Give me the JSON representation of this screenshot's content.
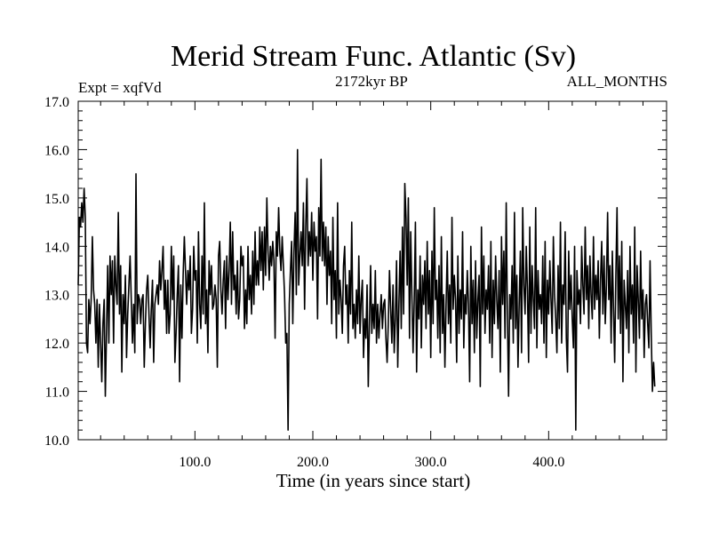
{
  "chart_data": {
    "type": "line",
    "title": "Merid Stream Func. Atlantic (Sv)",
    "subtitle_left": "Expt = xqfVd",
    "subtitle_center": "2172kyr BP",
    "subtitle_right": "ALL_MONTHS",
    "xlabel": "Time (in years since start)",
    "ylabel": "",
    "xlim": [
      1,
      500
    ],
    "ylim": [
      10.0,
      17.0
    ],
    "x_ticks": [
      100,
      200,
      300,
      400
    ],
    "x_tick_labels": [
      "100.0",
      "200.0",
      "300.0",
      "400.0"
    ],
    "y_ticks": [
      10,
      11,
      12,
      13,
      14,
      15,
      16,
      17
    ],
    "y_tick_labels": [
      "10.0",
      "11.0",
      "12.0",
      "13.0",
      "14.0",
      "15.0",
      "16.0",
      "17.0"
    ],
    "grid": false,
    "series": [
      {
        "name": "Merid Stream Func. Atlantic",
        "x_start": 1,
        "x_step": 1,
        "values": [
          13.2,
          14.6,
          14.4,
          14.9,
          14.5,
          15.2,
          14.6,
          12.0,
          11.8,
          12.9,
          12.4,
          12.9,
          14.2,
          13.1,
          12.8,
          12.0,
          12.9,
          11.5,
          12.8,
          12.0,
          11.2,
          12.4,
          12.9,
          10.9,
          12.2,
          13.6,
          12.0,
          13.8,
          13.0,
          13.7,
          12.0,
          13.8,
          13.2,
          12.8,
          14.7,
          12.6,
          13.6,
          11.4,
          13.0,
          12.4,
          13.4,
          11.7,
          12.6,
          13.2,
          13.8,
          12.9,
          12.0,
          12.8,
          11.8,
          15.5,
          12.4,
          13.0,
          12.9,
          12.4,
          12.9,
          13.0,
          11.5,
          12.4,
          13.1,
          13.4,
          12.6,
          11.9,
          12.7,
          13.3,
          11.6,
          12.8,
          13.0,
          13.2,
          12.8,
          13.7,
          13.1,
          13.5,
          14.0,
          12.7,
          13.3,
          12.2,
          13.3,
          12.2,
          12.6,
          14.0,
          12.9,
          13.8,
          11.6,
          12.2,
          13.0,
          13.6,
          11.2,
          13.2,
          12.1,
          13.4,
          14.2,
          13.5,
          12.8,
          13.5,
          13.1,
          13.8,
          12.2,
          12.7,
          14.0,
          13.3,
          13.5,
          12.0,
          14.3,
          12.8,
          12.3,
          13.8,
          12.6,
          14.9,
          12.4,
          13.1,
          11.8,
          13.7,
          13.0,
          13.6,
          12.7,
          12.8,
          13.2,
          12.9,
          11.5,
          13.8,
          14.1,
          13.1,
          12.6,
          13.3,
          13.7,
          12.3,
          13.8,
          12.9,
          13.5,
          14.5,
          12.8,
          14.3,
          13.1,
          13.4,
          12.6,
          13.7,
          12.5,
          12.9,
          14.0,
          13.6,
          13.8,
          12.3,
          13.1,
          12.4,
          14.0,
          12.9,
          13.4,
          12.6,
          13.9,
          12.8,
          14.3,
          13.2,
          13.7,
          13.2,
          14.4,
          13.5,
          14.3,
          13.1,
          14.4,
          13.4,
          15.0,
          13.9,
          13.3,
          14.0,
          13.6,
          14.1,
          13.7,
          12.1,
          14.3,
          13.8,
          14.8,
          13.9,
          13.5,
          14.2,
          13.6,
          13.0,
          12.0,
          12.2,
          10.2,
          12.8,
          13.5,
          14.1,
          12.4,
          13.9,
          14.7,
          13.0,
          16.0,
          13.2,
          13.8,
          14.3,
          13.6,
          14.9,
          12.7,
          14.4,
          15.4,
          13.6,
          14.3,
          13.8,
          14.7,
          13.3,
          14.5,
          13.9,
          14.2,
          12.5,
          14.8,
          13.8,
          15.8,
          13.7,
          14.5,
          13.6,
          14.4,
          12.8,
          14.2,
          13.4,
          13.9,
          12.4,
          14.6,
          12.9,
          13.5,
          12.1,
          14.9,
          12.6,
          13.3,
          12.9,
          12.2,
          13.6,
          14.0,
          12.8,
          13.2,
          12.0,
          13.5,
          12.6,
          14.5,
          12.3,
          12.8,
          12.1,
          13.1,
          12.4,
          13.8,
          12.2,
          12.9,
          13.3,
          11.7,
          12.5,
          12.1,
          13.2,
          11.1,
          12.4,
          13.6,
          12.2,
          12.8,
          12.3,
          13.5,
          12.0,
          12.8,
          12.1,
          12.6,
          13.0,
          12.3,
          12.8,
          12.9,
          12.1,
          11.6,
          12.4,
          13.5,
          12.7,
          12.0,
          13.2,
          11.8,
          12.5,
          13.7,
          11.5,
          12.8,
          13.9,
          12.3,
          14.4,
          12.6,
          15.3,
          14.6,
          13.2,
          15.0,
          12.1,
          14.3,
          13.0,
          11.8,
          12.9,
          14.5,
          11.4,
          13.1,
          12.5,
          13.8,
          11.9,
          13.4,
          12.8,
          13.7,
          12.3,
          14.1,
          12.6,
          13.5,
          11.7,
          13.9,
          12.4,
          14.8,
          12.9,
          13.3,
          12.1,
          13.6,
          11.8,
          14.2,
          12.2,
          13.0,
          11.5,
          12.8,
          13.9,
          12.4,
          13.2,
          12.0,
          14.6,
          12.7,
          13.4,
          12.9,
          11.6,
          13.8,
          12.2,
          13.1,
          12.5,
          14.3,
          11.9,
          13.0,
          12.6,
          13.5,
          12.8,
          11.2,
          14.0,
          12.4,
          13.3,
          11.8,
          13.7,
          12.1,
          12.9,
          13.4,
          11.1,
          14.4,
          12.6,
          13.8,
          12.2,
          13.1,
          12.7,
          13.6,
          12.0,
          14.1,
          11.7,
          13.3,
          12.4,
          13.8,
          12.9,
          12.3,
          13.5,
          11.4,
          14.2,
          12.8,
          13.9,
          12.1,
          14.9,
          12.6,
          10.9,
          13.0,
          12.5,
          13.6,
          12.0,
          14.7,
          12.3,
          13.4,
          11.5,
          12.8,
          13.9,
          11.8,
          14.8,
          13.2,
          12.6,
          14.0,
          13.1,
          11.6,
          14.4,
          12.2,
          13.6,
          12.9,
          12.3,
          14.8,
          11.9,
          13.5,
          12.7,
          13.0,
          12.4,
          13.8,
          12.0,
          14.1,
          11.7,
          13.3,
          12.6,
          13.7,
          12.9,
          12.2,
          14.2,
          13.0,
          12.5,
          11.8,
          13.6,
          12.3,
          14.5,
          12.0,
          13.2,
          12.8,
          14.3,
          12.1,
          11.4,
          13.9,
          12.7,
          13.4,
          12.5,
          11.9,
          14.0,
          10.2,
          13.5,
          12.8,
          13.1,
          12.4,
          14.0,
          13.2,
          12.6,
          14.4,
          12.9,
          13.6,
          12.3,
          13.8,
          13.0,
          12.5,
          14.2,
          12.7,
          13.4,
          12.9,
          13.7,
          12.1,
          13.3,
          14.1,
          12.6,
          13.8,
          12.4,
          13.2,
          14.7,
          12.9,
          13.6,
          12.0,
          13.9,
          12.7,
          11.6,
          13.4,
          14.8,
          12.5,
          13.8,
          12.2,
          14.1,
          11.2,
          13.3,
          12.8,
          12.3,
          13.5,
          11.8,
          14.0,
          12.6,
          13.2,
          12.0,
          14.4,
          11.4,
          13.6,
          12.9,
          12.1,
          13.9,
          12.5,
          13.1,
          11.7,
          12.8,
          13.0,
          12.4,
          11.9,
          13.7,
          12.2,
          11.0,
          11.6,
          11.1
        ]
      }
    ]
  }
}
